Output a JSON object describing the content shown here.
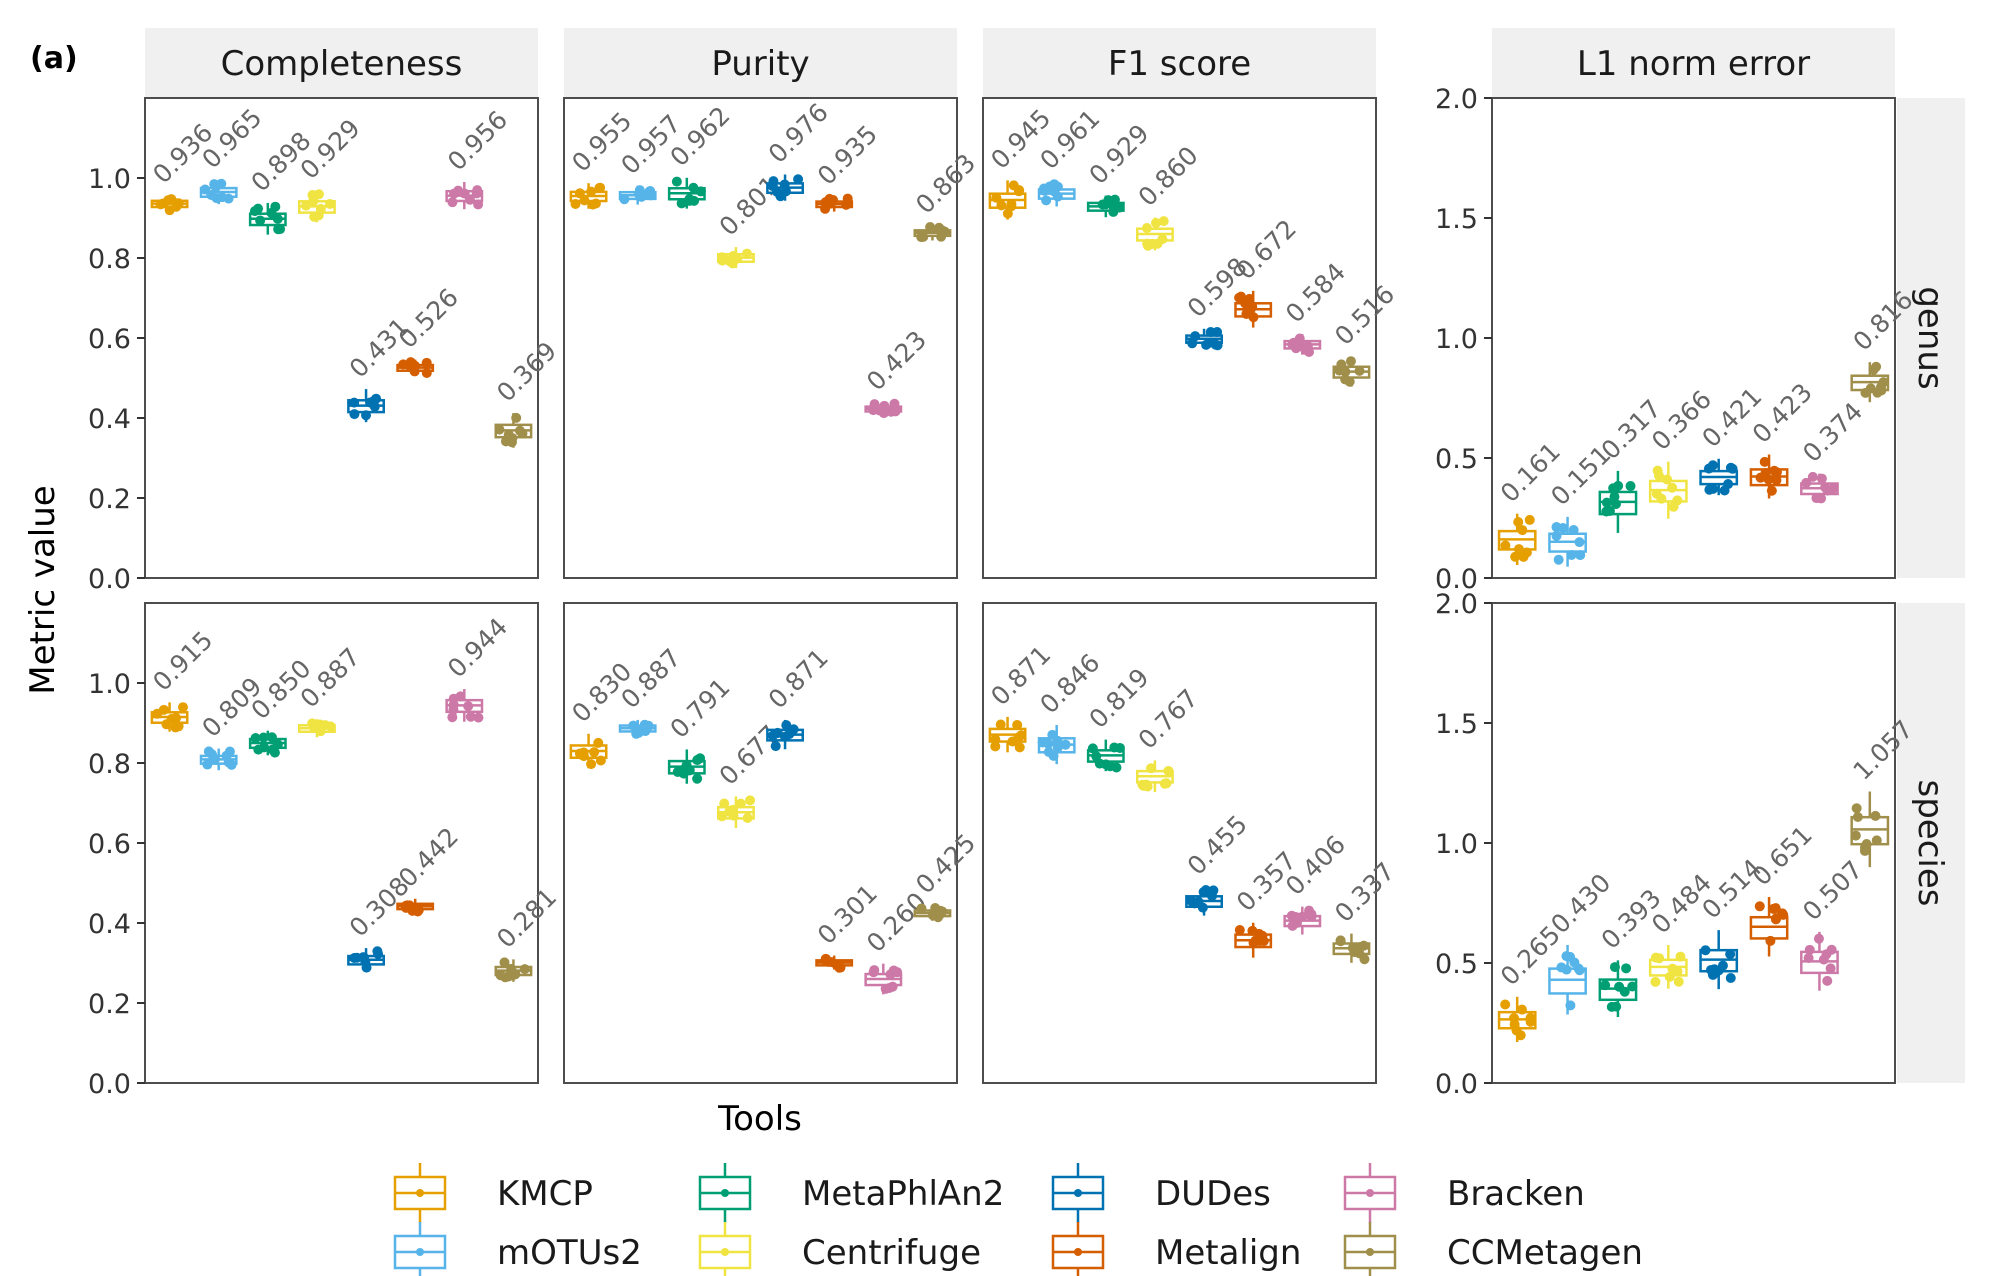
{
  "panel_label": "(a)",
  "ylabel": "Metric value",
  "xlabel": "Tools",
  "colors": {
    "KMCP": "#E69F00",
    "mOTUs2": "#56B4E9",
    "MetaPhlAn2": "#009E73",
    "Centrifuge": "#F0E442",
    "DUDes": "#0072B2",
    "Metalign": "#D55E00",
    "Bracken": "#CC79A7",
    "CCMetagen": "#A08F4B"
  },
  "chart_data": {
    "type": "boxplot",
    "tools": [
      "KMCP",
      "mOTUs2",
      "MetaPhlAn2",
      "Centrifuge",
      "DUDes",
      "Metalign",
      "Bracken",
      "CCMetagen"
    ],
    "legend": {
      "placement": "bottom",
      "entries": [
        "KMCP",
        "mOTUs2",
        "MetaPhlAn2",
        "Centrifuge",
        "DUDes",
        "Metalign",
        "Bracken",
        "CCMetagen"
      ]
    },
    "facets": {
      "columns": [
        "Completeness",
        "Purity",
        "F1 score",
        "L1 norm error"
      ],
      "rows": [
        "genus",
        "species"
      ]
    },
    "ylim_metric": [
      0,
      1.2
    ],
    "yticks_metric": [
      "0.0",
      "0.2",
      "0.4",
      "0.6",
      "0.8",
      "1.0"
    ],
    "ylim_l1": [
      0,
      2.0
    ],
    "yticks_l1": [
      "0.0",
      "0.5",
      "1.0",
      "1.5",
      "2.0"
    ],
    "panels": [
      {
        "metric": "Completeness",
        "rank": "genus",
        "values": [
          0.936,
          0.965,
          0.898,
          0.929,
          0.431,
          0.526,
          0.956,
          0.369
        ],
        "labels": [
          "0.936",
          "0.965",
          "0.898",
          "0.929",
          "0.431",
          "0.526",
          "0.956",
          "0.369"
        ]
      },
      {
        "metric": "Purity",
        "rank": "genus",
        "values": [
          0.955,
          0.957,
          0.962,
          0.801,
          0.976,
          0.935,
          0.423,
          0.863
        ],
        "labels": [
          "0.955",
          "0.957",
          "0.962",
          "0.801",
          "0.976",
          "0.935",
          "0.423",
          "0.863"
        ]
      },
      {
        "metric": "F1 score",
        "rank": "genus",
        "values": [
          0.945,
          0.961,
          0.929,
          0.86,
          0.598,
          0.672,
          0.584,
          0.516
        ],
        "labels": [
          "0.945",
          "0.961",
          "0.929",
          "0.860",
          "0.598",
          "0.672",
          "0.584",
          "0.516"
        ]
      },
      {
        "metric": "L1 norm error",
        "rank": "genus",
        "values": [
          0.161,
          0.151,
          0.317,
          0.366,
          0.421,
          0.423,
          0.374,
          0.816
        ],
        "labels": [
          "0.161",
          "0.151",
          "0.317",
          "0.366",
          "0.421",
          "0.423",
          "0.374",
          "0.816"
        ]
      },
      {
        "metric": "Completeness",
        "rank": "species",
        "values": [
          0.915,
          0.809,
          0.85,
          0.887,
          0.308,
          0.442,
          0.944,
          0.281
        ],
        "labels": [
          "0.915",
          "0.809",
          "0.850",
          "0.887",
          "0.308",
          "0.442",
          "0.944",
          "0.281"
        ]
      },
      {
        "metric": "Purity",
        "rank": "species",
        "values": [
          0.83,
          0.887,
          0.791,
          0.677,
          0.871,
          0.301,
          0.26,
          0.425
        ],
        "labels": [
          "0.830",
          "0.887",
          "0.791",
          "0.677",
          "0.871",
          "0.301",
          "0.260",
          "0.425"
        ]
      },
      {
        "metric": "F1 score",
        "rank": "species",
        "values": [
          0.871,
          0.846,
          0.819,
          0.767,
          0.455,
          0.357,
          0.406,
          0.337
        ],
        "labels": [
          "0.871",
          "0.846",
          "0.819",
          "0.767",
          "0.455",
          "0.357",
          "0.406",
          "0.337"
        ]
      },
      {
        "metric": "L1 norm error",
        "rank": "species",
        "values": [
          0.265,
          0.43,
          0.393,
          0.484,
          0.514,
          0.651,
          0.507,
          1.057
        ],
        "labels": [
          "0.265",
          "0.430",
          "0.393",
          "0.484",
          "0.514",
          "0.651",
          "0.507",
          "1.057"
        ]
      }
    ]
  }
}
